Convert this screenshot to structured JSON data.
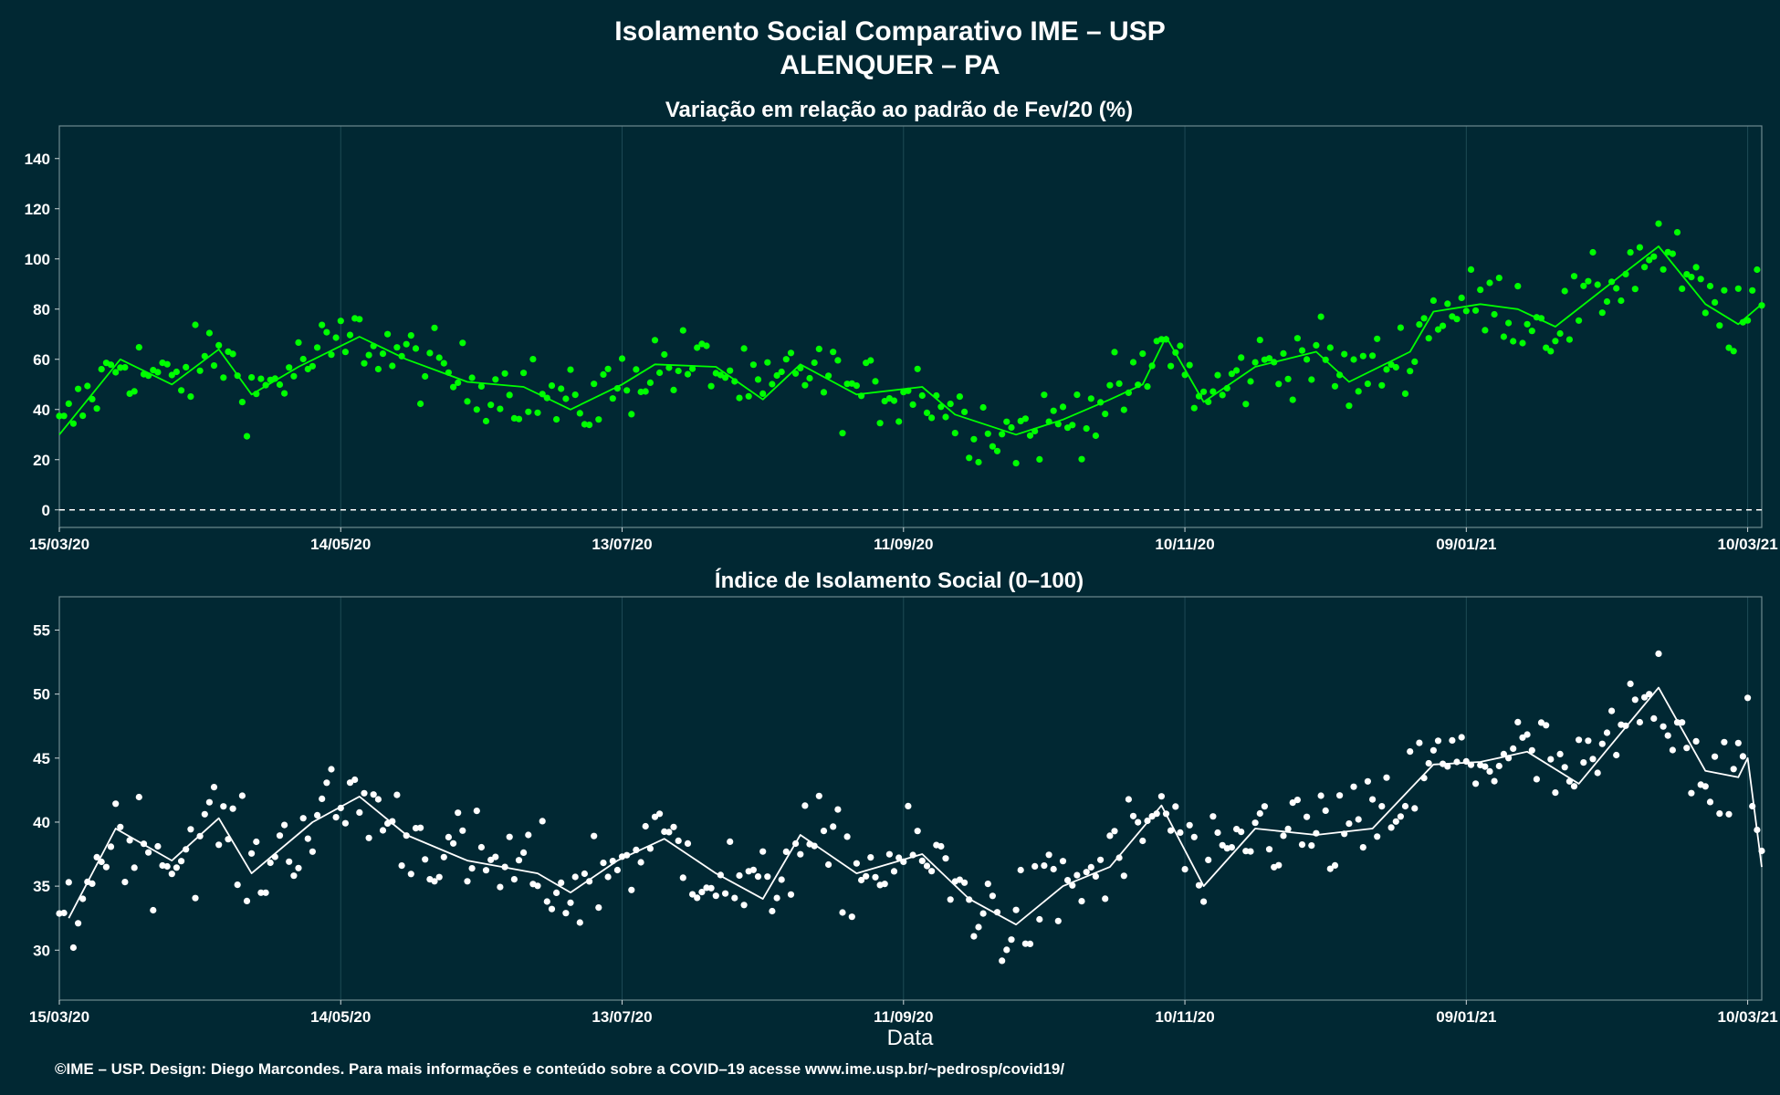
{
  "title": "Isolamento Social Comparativo IME – USP",
  "subtitle": "ALENQUER – PA",
  "footer": "©IME – USP. Design: Diego Marcondes. Para mais informações e conteúdo sobre a COVID–19 acesse www.ime.usp.br/~pedrosp/covid19/",
  "colors": {
    "background": "#012833",
    "series_top": "#00ff00",
    "series_bottom": "#ffffff",
    "grid": "#1e4a55",
    "panel_border": "#6f8a90"
  },
  "chart_data": [
    {
      "type": "scatter",
      "title": "Variação em relação ao padrão de Fev/20 (%)",
      "xlabel": "",
      "ylabel": "",
      "x_range": [
        "2020-03-15",
        "2021-03-13"
      ],
      "x_ticks": [
        "15/03/20",
        "14/05/20",
        "13/07/20",
        "11/09/20",
        "10/11/20",
        "09/01/21",
        "10/03/21"
      ],
      "ylim": [
        -7,
        153
      ],
      "y_ticks": [
        "0",
        "20",
        "40",
        "60",
        "80",
        "100",
        "120",
        "140"
      ],
      "reference_line": 0,
      "series": [
        {
          "kind": "daily points + 7-day moving average line",
          "anchors": [
            [
              "2020-03-15",
              30
            ],
            [
              "2020-03-28",
              60
            ],
            [
              "2020-04-08",
              50
            ],
            [
              "2020-04-18",
              64
            ],
            [
              "2020-04-25",
              46
            ],
            [
              "2020-05-05",
              57
            ],
            [
              "2020-05-18",
              69
            ],
            [
              "2020-05-28",
              60
            ],
            [
              "2020-06-10",
              51
            ],
            [
              "2020-06-22",
              49
            ],
            [
              "2020-07-02",
              40
            ],
            [
              "2020-07-13",
              50
            ],
            [
              "2020-07-20",
              58
            ],
            [
              "2020-08-02",
              57
            ],
            [
              "2020-08-12",
              44
            ],
            [
              "2020-08-20",
              58
            ],
            [
              "2020-09-01",
              46
            ],
            [
              "2020-09-15",
              49
            ],
            [
              "2020-09-22",
              38
            ],
            [
              "2020-10-05",
              30
            ],
            [
              "2020-10-15",
              36
            ],
            [
              "2020-10-25",
              44
            ],
            [
              "2020-11-01",
              50
            ],
            [
              "2020-11-06",
              69
            ],
            [
              "2020-11-14",
              43
            ],
            [
              "2020-11-25",
              57
            ],
            [
              "2020-12-08",
              63
            ],
            [
              "2020-12-15",
              51
            ],
            [
              "2020-12-28",
              63
            ],
            [
              "2021-01-02",
              79
            ],
            [
              "2021-01-12",
              82
            ],
            [
              "2021-01-20",
              80
            ],
            [
              "2021-01-28",
              73
            ],
            [
              "2021-02-10",
              92
            ],
            [
              "2021-02-19",
              105
            ],
            [
              "2021-03-01",
              82
            ],
            [
              "2021-03-08",
              74
            ],
            [
              "2021-03-13",
              82
            ]
          ]
        }
      ]
    },
    {
      "type": "scatter",
      "title": "Índice de Isolamento Social (0–100)",
      "xlabel": "Data",
      "ylabel": "",
      "x_range": [
        "2020-03-15",
        "2021-03-13"
      ],
      "x_ticks": [
        "15/03/20",
        "14/05/20",
        "13/07/20",
        "11/09/20",
        "10/11/20",
        "09/01/21",
        "10/03/21"
      ],
      "ylim": [
        26.1,
        57.6
      ],
      "y_ticks": [
        "30",
        "35",
        "40",
        "45",
        "50",
        "55"
      ],
      "series": [
        {
          "kind": "daily points + 7-day moving average line",
          "anchors": [
            [
              "2020-03-17",
              32.5
            ],
            [
              "2020-03-27",
              39.5
            ],
            [
              "2020-04-08",
              37
            ],
            [
              "2020-04-18",
              40.3
            ],
            [
              "2020-04-25",
              36
            ],
            [
              "2020-05-08",
              40
            ],
            [
              "2020-05-18",
              42
            ],
            [
              "2020-05-28",
              39
            ],
            [
              "2020-06-10",
              37
            ],
            [
              "2020-06-25",
              36
            ],
            [
              "2020-07-02",
              34.5
            ],
            [
              "2020-07-12",
              37
            ],
            [
              "2020-07-22",
              38.7
            ],
            [
              "2020-08-02",
              36
            ],
            [
              "2020-08-12",
              34
            ],
            [
              "2020-08-20",
              39
            ],
            [
              "2020-09-01",
              36
            ],
            [
              "2020-09-15",
              37.5
            ],
            [
              "2020-09-25",
              34
            ],
            [
              "2020-10-05",
              32
            ],
            [
              "2020-10-15",
              35
            ],
            [
              "2020-10-25",
              36.5
            ],
            [
              "2020-11-05",
              41.3
            ],
            [
              "2020-11-14",
              35
            ],
            [
              "2020-11-25",
              39.5
            ],
            [
              "2020-12-08",
              39
            ],
            [
              "2020-12-20",
              39.5
            ],
            [
              "2021-01-02",
              44.5
            ],
            [
              "2021-01-12",
              44.7
            ],
            [
              "2021-01-22",
              45.5
            ],
            [
              "2021-02-02",
              43
            ],
            [
              "2021-02-19",
              50.5
            ],
            [
              "2021-03-01",
              44
            ],
            [
              "2021-03-08",
              43.5
            ],
            [
              "2021-03-10",
              45
            ],
            [
              "2021-03-13",
              36.5
            ]
          ]
        }
      ]
    }
  ]
}
